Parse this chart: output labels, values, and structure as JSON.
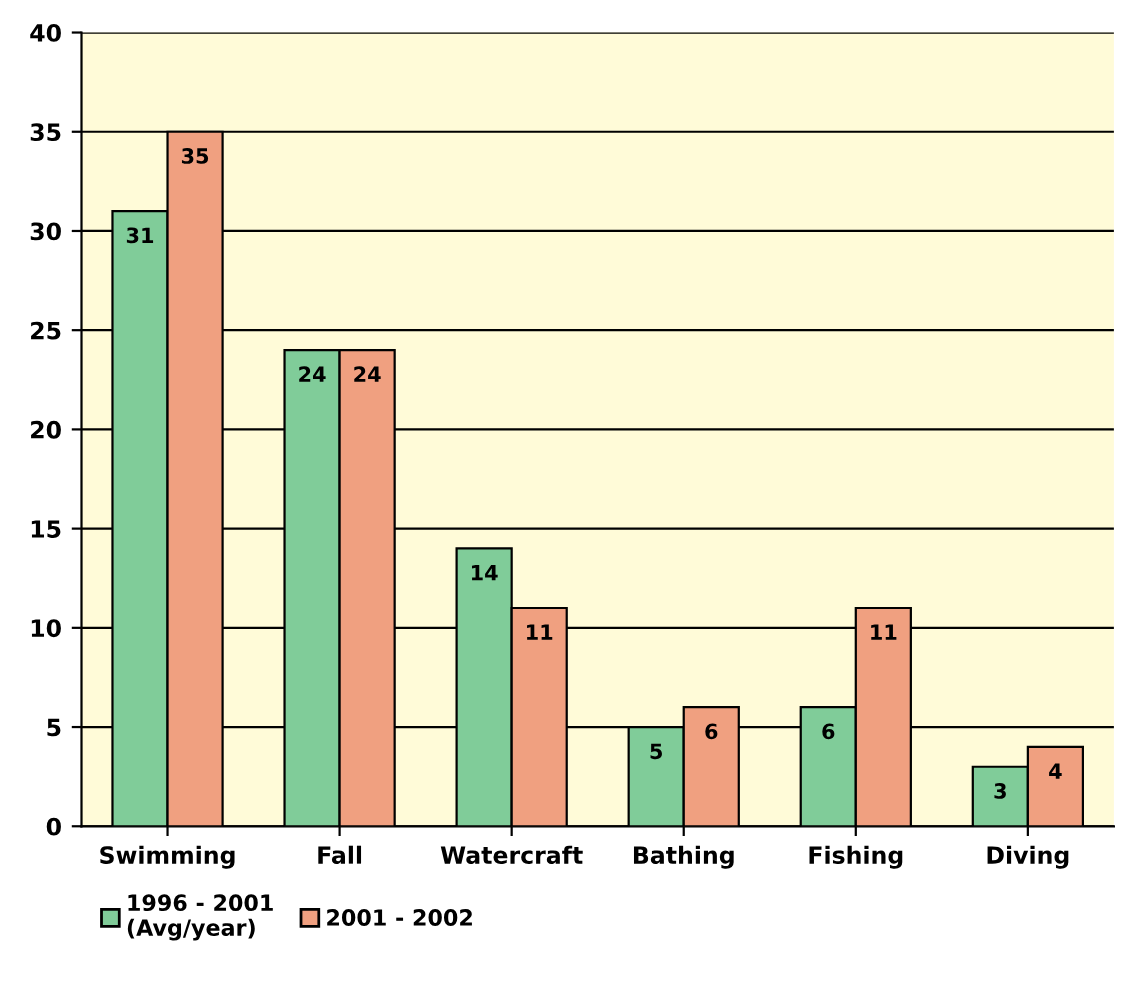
{
  "chart_data": {
    "type": "bar",
    "categories": [
      "Swimming",
      "Fall",
      "Watercraft",
      "Bathing",
      "Fishing",
      "Diving"
    ],
    "series": [
      {
        "name": "1996 - 2001\n(Avg/year)",
        "color": "#80cc99",
        "values": [
          31,
          24,
          14,
          5,
          6,
          3
        ]
      },
      {
        "name": "2001 - 2002",
        "color": "#f0a080",
        "values": [
          35,
          24,
          11,
          6,
          11,
          4
        ]
      }
    ],
    "ylim": [
      0,
      40
    ],
    "yticks": [
      0,
      5,
      10,
      15,
      20,
      25,
      30,
      35,
      40
    ],
    "grid": "y",
    "legend": "bottom left",
    "data_labels": true
  }
}
